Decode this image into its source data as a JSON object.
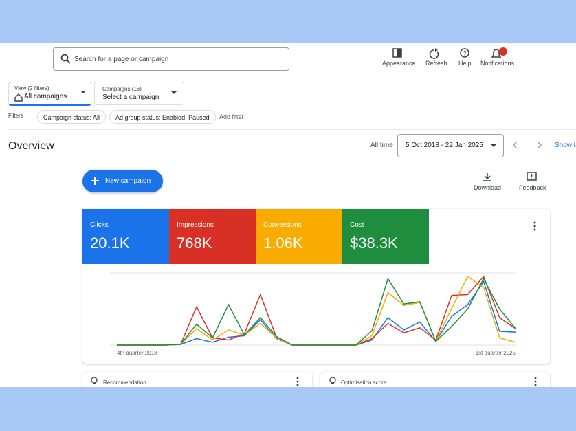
{
  "header": {
    "search_placeholder": "Search for a page or campaign",
    "badge": "!",
    "actions": [
      "Appearance",
      "Refresh",
      "Help",
      "Notifications"
    ]
  },
  "filters": {
    "view_label": "View (2 filters)",
    "view_value": "All campaigns",
    "campaigns_label": "Campaigns (16)",
    "campaigns_value": "Select a campaign",
    "filters_label": "Filters",
    "chips": [
      "Campaign status: All",
      "Ad group status: Enabled, Paused"
    ],
    "add_filter": "Add filter"
  },
  "overview": {
    "title": "Overview",
    "range_label": "All time",
    "date_range": "5 Oct 2018 - 22 Jan 2025",
    "show_label": "Show la",
    "new_campaign": "New campaign",
    "download": "Download",
    "feedback": "Feedback"
  },
  "metrics": [
    {
      "label": "Clicks",
      "value": "20.1K",
      "color": "#1a73e8"
    },
    {
      "label": "Impressions",
      "value": "768K",
      "color": "#d93025"
    },
    {
      "label": "Conversions",
      "value": "1.06K",
      "color": "#f9ab00"
    },
    {
      "label": "Cost",
      "value": "$38.3K",
      "color": "#1e8e3e"
    }
  ],
  "chart_data": {
    "type": "line",
    "categories": [
      "4th quarter 2018",
      null,
      null,
      null,
      null,
      null,
      null,
      null,
      null,
      null,
      null,
      null,
      null,
      null,
      null,
      null,
      null,
      null,
      null,
      null,
      null,
      null,
      null,
      null,
      null,
      "1st quarter 2025"
    ],
    "ylim": [
      0,
      100
    ],
    "yticks": [
      0,
      50,
      100
    ],
    "grid": true,
    "series": [
      {
        "name": "Clicks",
        "color": "#1a73e8",
        "values": [
          0,
          0,
          0,
          0,
          1,
          9,
          4,
          11,
          13,
          35,
          9,
          0,
          0,
          0,
          0,
          0,
          7,
          38,
          21,
          32,
          5,
          40,
          56,
          88,
          19,
          18
        ]
      },
      {
        "name": "Impressions",
        "color": "#d93025",
        "values": [
          0,
          0,
          0,
          0,
          1,
          53,
          10,
          7,
          16,
          70,
          11,
          0,
          0,
          0,
          0,
          0,
          9,
          30,
          17,
          24,
          7,
          69,
          70,
          95,
          38,
          23
        ]
      },
      {
        "name": "Conversions",
        "color": "#f9ab00",
        "values": [
          0,
          0,
          0,
          0,
          1,
          23,
          7,
          21,
          14,
          30,
          10,
          0,
          0,
          0,
          0,
          0,
          13,
          73,
          55,
          59,
          5,
          51,
          95,
          80,
          10,
          4
        ]
      },
      {
        "name": "Cost",
        "color": "#1e8e3e",
        "values": [
          0,
          0,
          0,
          0,
          1,
          29,
          10,
          56,
          14,
          38,
          12,
          0,
          0,
          0,
          0,
          0,
          20,
          92,
          57,
          60,
          5,
          26,
          50,
          92,
          50,
          23
        ]
      }
    ]
  },
  "cards": [
    "Recommendation",
    "Optimisation score"
  ]
}
